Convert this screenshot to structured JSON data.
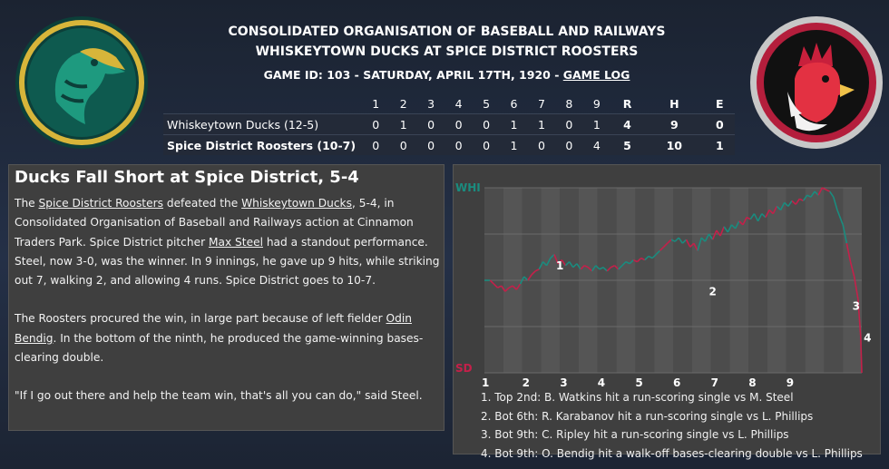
{
  "header": {
    "league": "CONSOLIDATED ORGANISATION OF BASEBALL AND RAILWAYS",
    "matchup": "WHISKEYTOWN DUCKS AT SPICE DISTRICT ROOSTERS",
    "game_info": "GAME ID: 103 - SATURDAY, APRIL 17TH, 1920 - ",
    "game_log_link": "GAME LOG"
  },
  "logos": {
    "away": "ducks-logo-icon",
    "home": "roosters-logo-icon"
  },
  "linescore": {
    "columns": [
      "1",
      "2",
      "3",
      "4",
      "5",
      "6",
      "7",
      "8",
      "9",
      "R",
      "H",
      "E"
    ],
    "rows": [
      {
        "team": "Whiskeytown Ducks (12-5)",
        "cells": [
          "0",
          "1",
          "0",
          "0",
          "0",
          "1",
          "1",
          "0",
          "1",
          "4",
          "9",
          "0"
        ]
      },
      {
        "team": "Spice District Roosters (10-7)",
        "cells": [
          "0",
          "0",
          "0",
          "0",
          "0",
          "1",
          "0",
          "0",
          "4",
          "5",
          "10",
          "1"
        ]
      }
    ]
  },
  "story": {
    "headline": "Ducks Fall Short at Spice District, 5-4",
    "p1_a": "The ",
    "p1_home": "Spice District Roosters",
    "p1_b": " defeated the ",
    "p1_away": "Whiskeytown Ducks",
    "p1_c": ", 5-4, in Consolidated Organisation of Baseball and Railways action at Cinnamon Traders Park. Spice District pitcher ",
    "p1_pitcher": "Max Steel",
    "p1_d": " had a standout performance. Steel, now 3-0, was the winner. In 9 innings, he gave up 9 hits, while striking out 7, walking 2, and allowing 4 runs. Spice District goes to 10-7.",
    "p2_a": "The Roosters procured the win, in large part because of left fielder ",
    "p2_player": "Odin Bendig",
    "p2_b": ". In the bottom of the ninth, he produced the game-winning bases-clearing double.",
    "p3": "\"If I go out there and help the team win, that's all you can do,\" said Steel."
  },
  "chart_data": {
    "type": "line",
    "y_top_label": "WHI",
    "y_bottom_label": "SD",
    "innings": [
      "1",
      "2",
      "3",
      "4",
      "5",
      "6",
      "7",
      "8",
      "9"
    ],
    "ylim": [
      0,
      100
    ],
    "colors": {
      "away": "#1a8c7f",
      "home": "#c4204a"
    },
    "series": [
      {
        "x": [
          0.0,
          0.15,
          0.25,
          0.35,
          0.45,
          0.55,
          0.65,
          0.75,
          0.85,
          0.95,
          1.05,
          1.15,
          1.25,
          1.35,
          1.45,
          1.55,
          1.65,
          1.75,
          1.85,
          1.95,
          2.05,
          2.15,
          2.25,
          2.35,
          2.45,
          2.55,
          2.65,
          2.75,
          2.85,
          2.95,
          3.05,
          3.15,
          3.25,
          3.35,
          3.45,
          3.55,
          3.65,
          3.75,
          3.85,
          3.95,
          4.05,
          4.15,
          4.25,
          4.35,
          4.45,
          4.55,
          4.65,
          4.75,
          4.85,
          4.95,
          5.05,
          5.15,
          5.25,
          5.35,
          5.45,
          5.55,
          5.65,
          5.75,
          5.85,
          5.95,
          6.05,
          6.15,
          6.25,
          6.35,
          6.45,
          6.55,
          6.65,
          6.75,
          6.85,
          6.95,
          7.05,
          7.15,
          7.25,
          7.35,
          7.45,
          7.55,
          7.65,
          7.75,
          7.85,
          7.95,
          8.05,
          8.15,
          8.25,
          8.35,
          8.45,
          8.55,
          8.65,
          8.75,
          8.85,
          8.95,
          9.05,
          9.15,
          9.25,
          9.35,
          9.5,
          9.6,
          9.7,
          9.8,
          9.9,
          9.97,
          10.0
        ],
        "values": [
          50,
          50,
          48,
          46,
          47,
          44,
          46,
          47,
          45,
          48,
          52,
          50,
          53,
          55,
          56,
          60,
          58,
          62,
          64,
          59,
          61,
          58,
          60,
          57,
          59,
          56,
          58,
          57,
          55,
          58,
          56,
          57,
          55,
          57,
          58,
          56,
          58,
          60,
          59,
          61,
          60,
          62,
          61,
          63,
          62,
          64,
          66,
          68,
          70,
          72,
          71,
          73,
          70,
          72,
          68,
          70,
          66,
          73,
          71,
          75,
          72,
          77,
          74,
          79,
          76,
          80,
          78,
          82,
          80,
          84,
          83,
          86,
          82,
          86,
          84,
          88,
          86,
          90,
          88,
          92,
          90,
          93,
          91,
          94,
          93,
          96,
          95,
          98,
          96,
          100,
          99,
          98,
          95,
          88,
          80,
          70,
          60,
          52,
          40,
          20,
          0
        ]
      }
    ],
    "annotations": [
      {
        "label": "1",
        "x": 1.9,
        "y": 56
      },
      {
        "label": "2",
        "x": 5.95,
        "y": 42
      },
      {
        "label": "3",
        "x": 9.75,
        "y": 34
      },
      {
        "label": "4",
        "x": 10.05,
        "y": 17
      }
    ],
    "notes": [
      "1. Top 2nd: B. Watkins hit a run-scoring single vs M. Steel",
      "2. Bot 6th: R. Karabanov hit a run-scoring single vs L. Phillips",
      "3. Bot 9th: C. Ripley hit a run-scoring single vs L. Phillips",
      "4. Bot 9th: O. Bendig hit a walk-off bases-clearing double vs L. Phillips"
    ]
  }
}
